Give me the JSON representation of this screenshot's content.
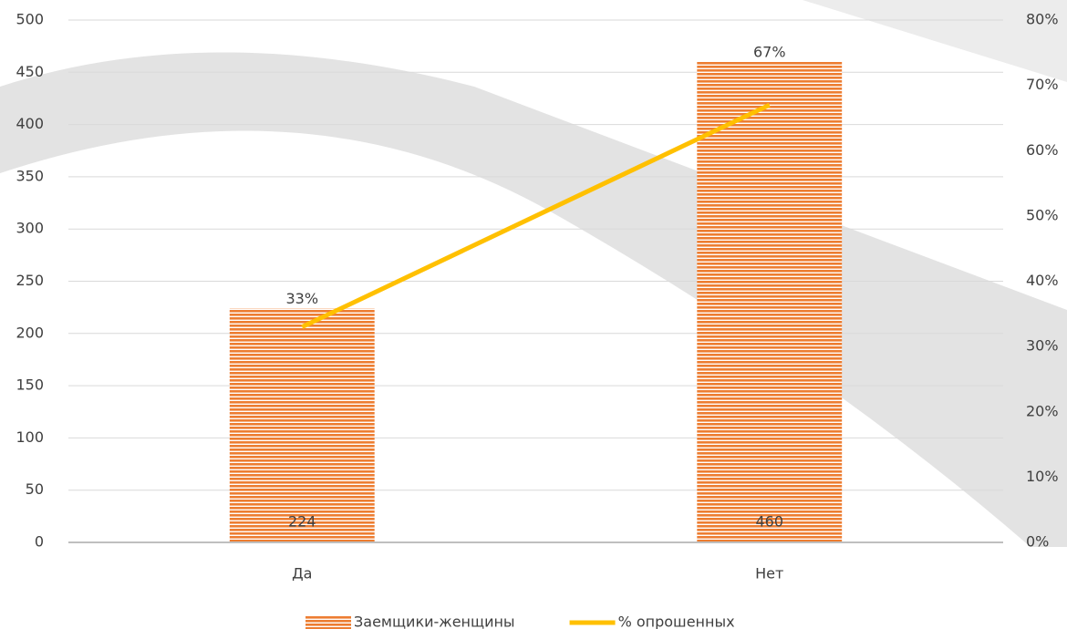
{
  "chart_data": {
    "type": "bar",
    "categories": [
      "Да",
      "Нет"
    ],
    "series": [
      {
        "name": "Заемщики-женщины",
        "color": "#ed7d31",
        "values": [
          224,
          460
        ]
      },
      {
        "name": "% опрошенных",
        "type": "line",
        "axis": "y2",
        "color": "#ffc000",
        "values": [
          33,
          67
        ],
        "value_labels": [
          "33%",
          "67%"
        ]
      }
    ],
    "ylim": [
      0,
      500
    ],
    "yticks": [
      0,
      50,
      100,
      150,
      200,
      250,
      300,
      350,
      400,
      450,
      500
    ],
    "y2lim": [
      0,
      80
    ],
    "y2ticks": [
      {
        "value": 0,
        "label": "0%"
      },
      {
        "value": 10,
        "label": "10%"
      },
      {
        "value": 20,
        "label": "20%"
      },
      {
        "value": 30,
        "label": "30%"
      },
      {
        "value": 40,
        "label": "40%"
      },
      {
        "value": 50,
        "label": "50%"
      },
      {
        "value": 60,
        "label": "60%"
      },
      {
        "value": 70,
        "label": "70%"
      },
      {
        "value": 80,
        "label": "80%"
      }
    ],
    "grid": true
  }
}
